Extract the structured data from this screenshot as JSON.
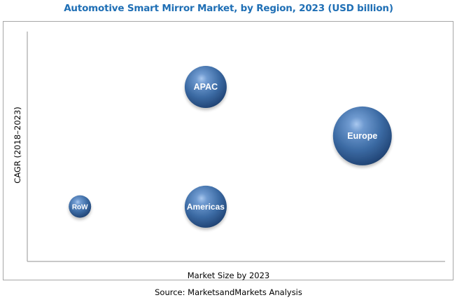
{
  "chart_data": {
    "type": "scatter",
    "subtype": "bubble",
    "title": "Automotive Smart Mirror Market, by Region, 2023 (USD billion)",
    "xlabel": "Market Size by 2023",
    "ylabel": "CAGR (2018–2023)",
    "xlim": [
      0,
      100
    ],
    "ylim": [
      0,
      100
    ],
    "grid": false,
    "ticks_shown": false,
    "legend": "none",
    "bubble_color": "#3b6aa3",
    "label_color": "#ffffff",
    "points": [
      {
        "label": "APAC",
        "x": 42.7,
        "y": 75.9,
        "size": 30
      },
      {
        "label": "Europe",
        "x": 80.2,
        "y": 54.6,
        "size": 42
      },
      {
        "label": "RoW",
        "x": 12.6,
        "y": 23.9,
        "size": 16
      },
      {
        "label": "Americas",
        "x": 42.7,
        "y": 23.8,
        "size": 30
      }
    ],
    "source": "Source: MarketsandMarkets Analysis"
  }
}
